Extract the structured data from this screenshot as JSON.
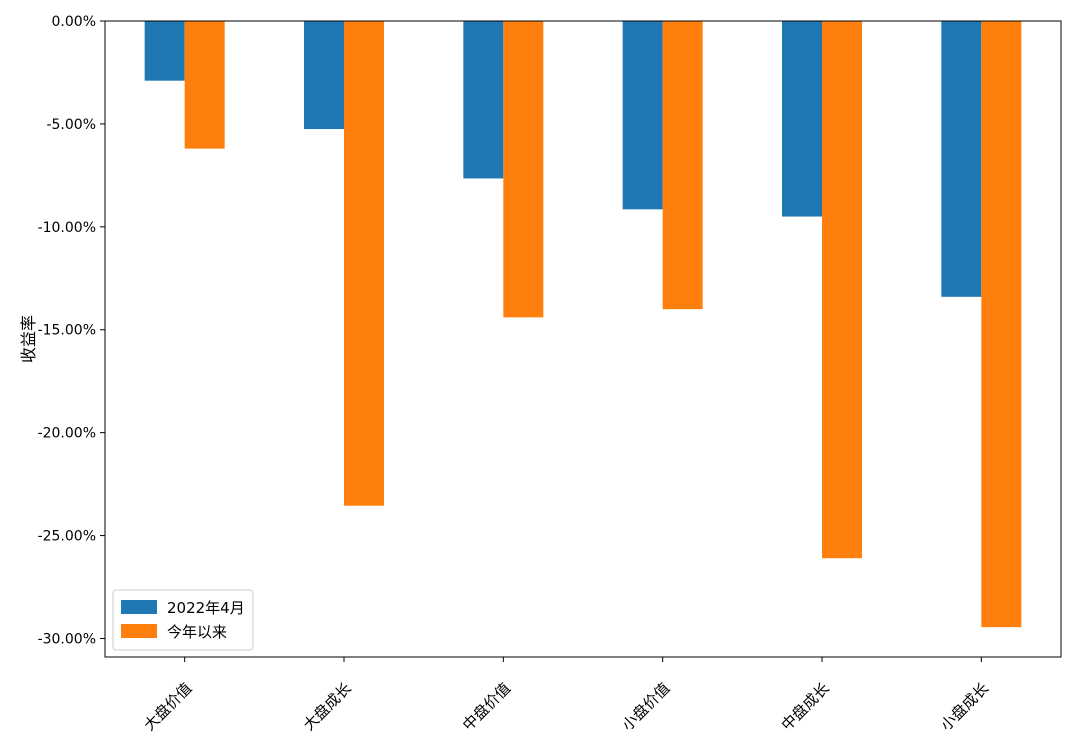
{
  "chart_data": {
    "type": "bar",
    "categories": [
      "大盘价值",
      "大盘成长",
      "中盘价值",
      "小盘价值",
      "中盘成长",
      "小盘成长"
    ],
    "series": [
      {
        "name": "2022年4月",
        "color": "#1f77b4",
        "values": [
          -2.9,
          -5.25,
          -7.65,
          -9.15,
          -9.5,
          -13.4
        ]
      },
      {
        "name": "今年以来",
        "color": "#ff7f0e",
        "values": [
          -6.2,
          -23.55,
          -14.4,
          -14.0,
          -26.1,
          -29.45
        ]
      }
    ],
    "title": "",
    "xlabel": "",
    "ylabel": "收益率",
    "ylim": [
      -30.9,
      0
    ],
    "yticks": [
      0,
      -5,
      -10,
      -15,
      -20,
      -25,
      -30
    ],
    "ytick_labels": [
      "0.00%",
      "-5.00%",
      "-10.00%",
      "-15.00%",
      "-20.00%",
      "-25.00%",
      "-30.00%"
    ],
    "legend": {
      "position": "lower-left"
    },
    "grid": false
  }
}
